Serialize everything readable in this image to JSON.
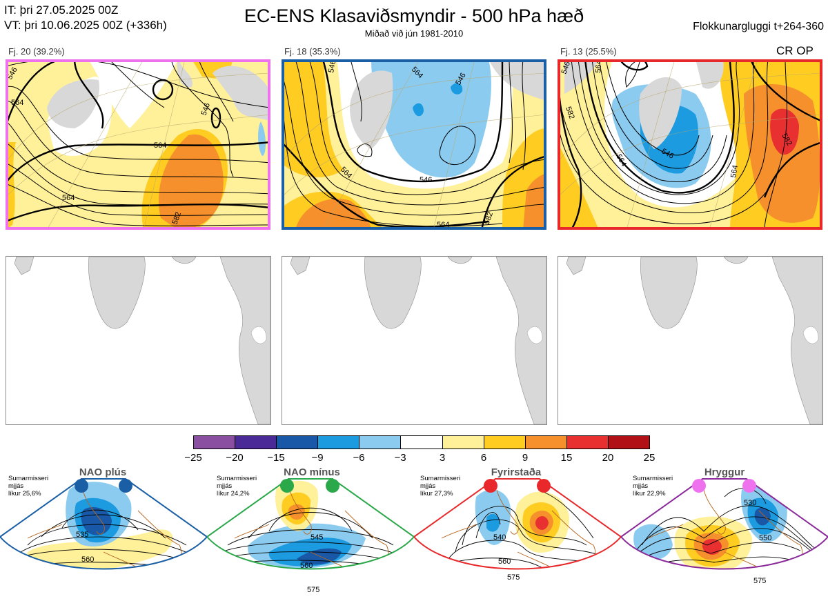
{
  "header": {
    "init_time": "IT: þri 27.05.2025 00Z",
    "valid_time": "VT: þri 10.06.2025 00Z  (+336h)",
    "title": "EC-ENS Klasaviðsmyndir - 500 hPa hæð",
    "subtitle": "Miðað við jún 1981-2010",
    "window": "Flokkunargluggi t+264-360"
  },
  "clusters": [
    {
      "label": "Fj. 20 (39.2%)",
      "frame_color": "#ee72ee",
      "contour_labels": [
        "546",
        "564",
        "546",
        "564",
        "564",
        "582"
      ]
    },
    {
      "label": "Fj. 18 (35.3%)",
      "frame_color": "#1a5fa6",
      "contour_labels": [
        "546",
        "564",
        "546",
        "546",
        "564",
        "582",
        "564"
      ]
    },
    {
      "label": "Fj. 13 (25.5%)",
      "frame_color": "#e8282a",
      "contour_labels": [
        "546",
        "564",
        "546",
        "564",
        "582",
        "582",
        "564"
      ],
      "regime_code": "CR OP"
    }
  ],
  "colorbar": {
    "ticks": [
      "−25",
      "−20",
      "−15",
      "−9",
      "−6",
      "−3",
      "3",
      "6",
      "9",
      "15",
      "20",
      "25"
    ],
    "colors": [
      "#8a4fa0",
      "#4a2a96",
      "#1858a6",
      "#1c9be0",
      "#8ccbf0",
      "#ffffff",
      "#fff09a",
      "#ffcc22",
      "#f5902c",
      "#e83030",
      "#b01016"
    ]
  },
  "regimes": [
    {
      "name": "NAO plús",
      "note": [
        "Sumarmisseri",
        "mjjás",
        "líkur 25,6%"
      ],
      "color": "#1a5fa6",
      "labels": [
        "535",
        "560"
      ]
    },
    {
      "name": "NAO mínus",
      "note": [
        "Sumarmisseri",
        "mjjás",
        "líkur 24,2%"
      ],
      "color": "#2aa84a",
      "labels": [
        "545",
        "560",
        "575"
      ]
    },
    {
      "name": "Fyrirstaða",
      "note": [
        "Sumarmisseri",
        "mjjás",
        "líkur 27,3%"
      ],
      "color": "#e8282a",
      "labels": [
        "540",
        "560",
        "575"
      ]
    },
    {
      "name": "Hryggur",
      "note": [
        "Sumarmisseri",
        "mjjás",
        "líkur 22,9%"
      ],
      "color": "#8a2a9a",
      "labels": [
        "530",
        "550",
        "575"
      ]
    }
  ]
}
